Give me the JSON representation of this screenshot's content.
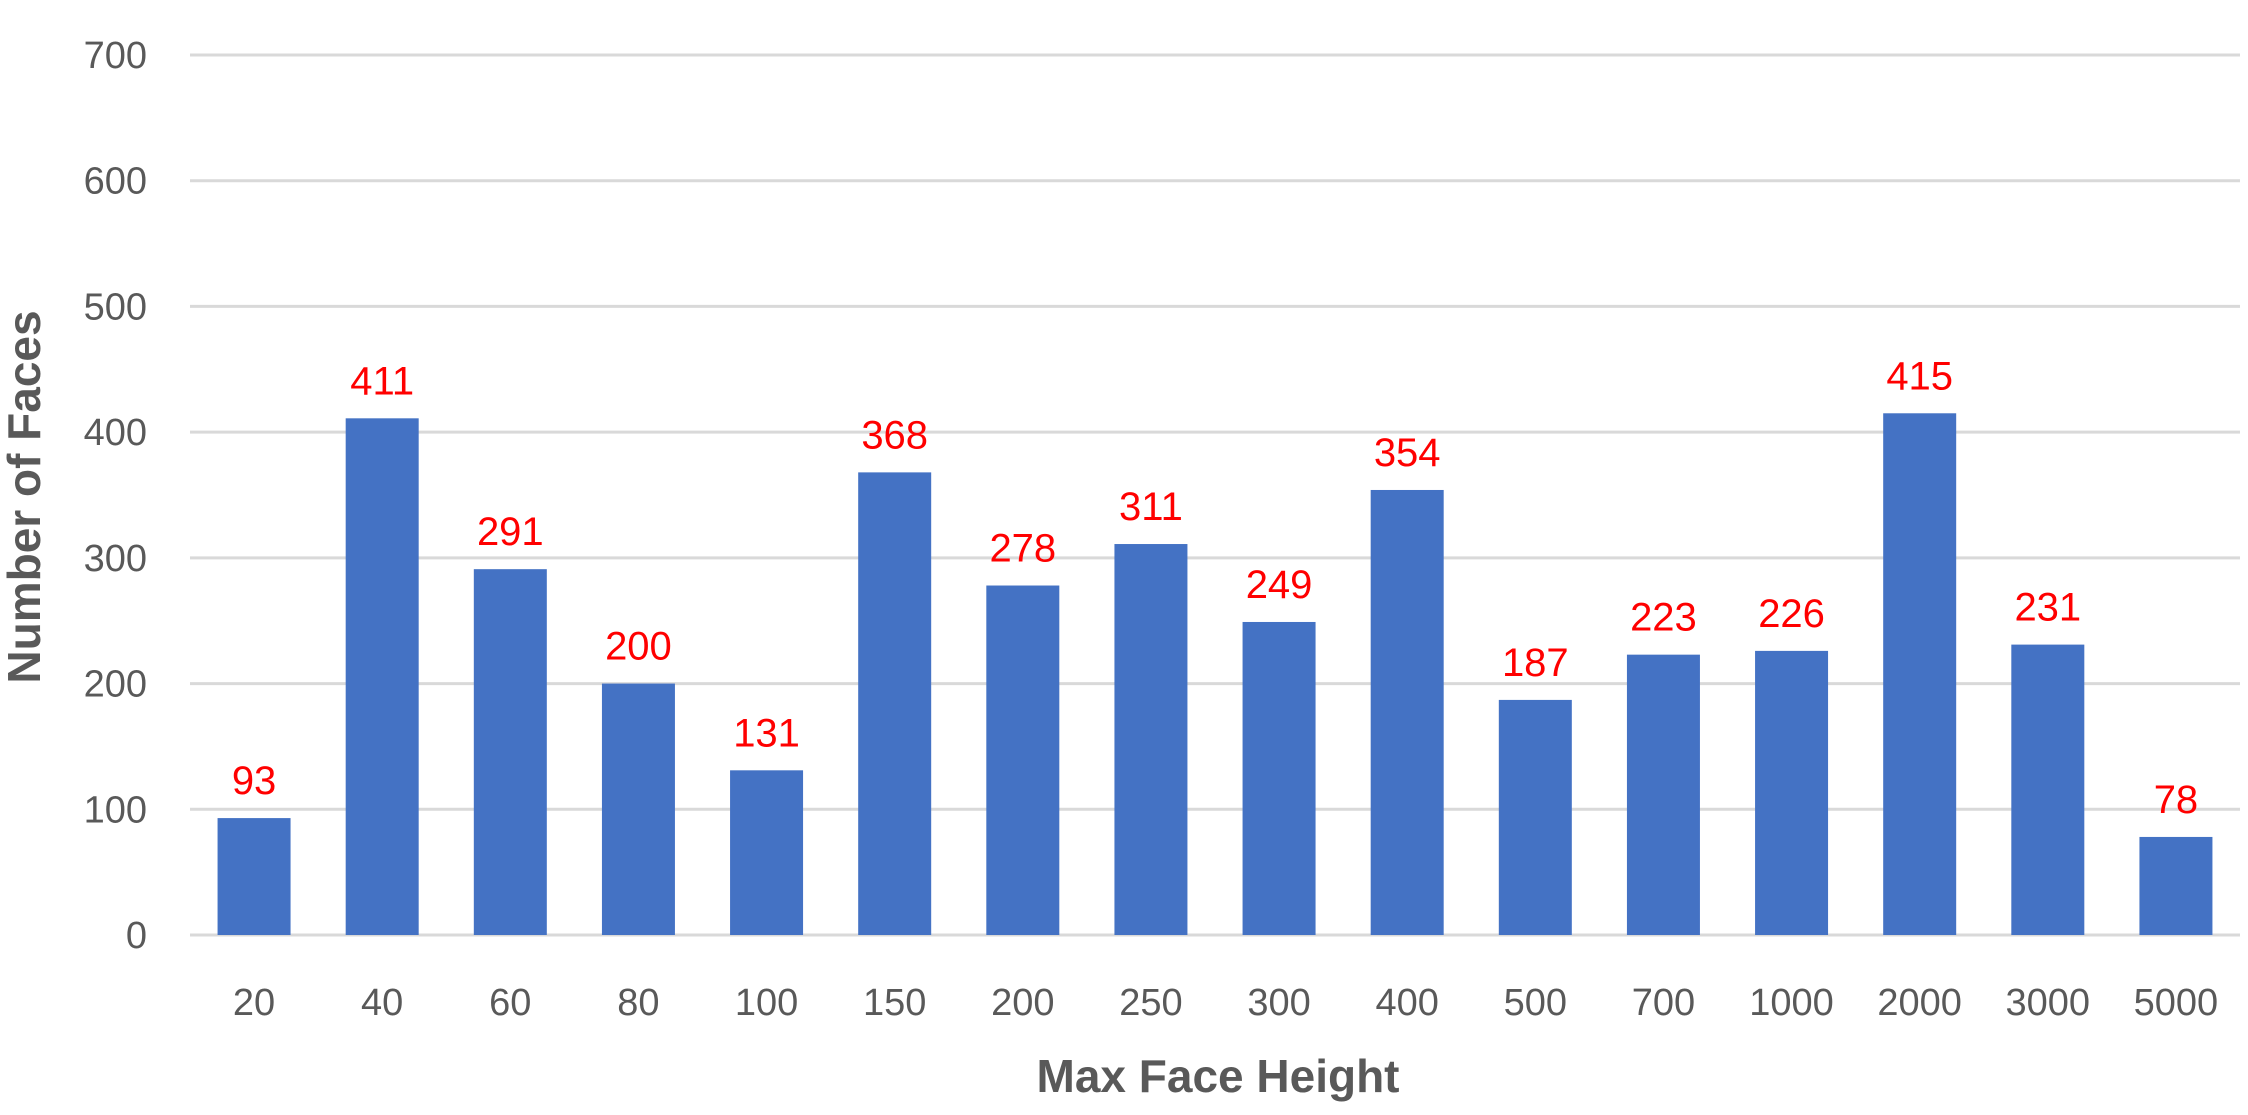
{
  "colors": {
    "bar": "#4472c4",
    "data_label": "#ff0000",
    "text": "#595959",
    "grid": "#d9d9d9"
  },
  "chart_data": {
    "type": "bar",
    "title": "",
    "xlabel": "Max Face Height",
    "ylabel": "Number of Faces",
    "categories": [
      "20",
      "40",
      "60",
      "80",
      "100",
      "150",
      "200",
      "250",
      "300",
      "400",
      "500",
      "700",
      "1000",
      "2000",
      "3000",
      "5000"
    ],
    "values": [
      93,
      411,
      291,
      200,
      131,
      368,
      278,
      311,
      249,
      354,
      187,
      223,
      226,
      415,
      231,
      78
    ],
    "ylim": [
      0,
      700
    ],
    "yticks": [
      0,
      100,
      200,
      300,
      400,
      500,
      600,
      700
    ],
    "grid": true,
    "legend": "none",
    "data_labels": true
  }
}
